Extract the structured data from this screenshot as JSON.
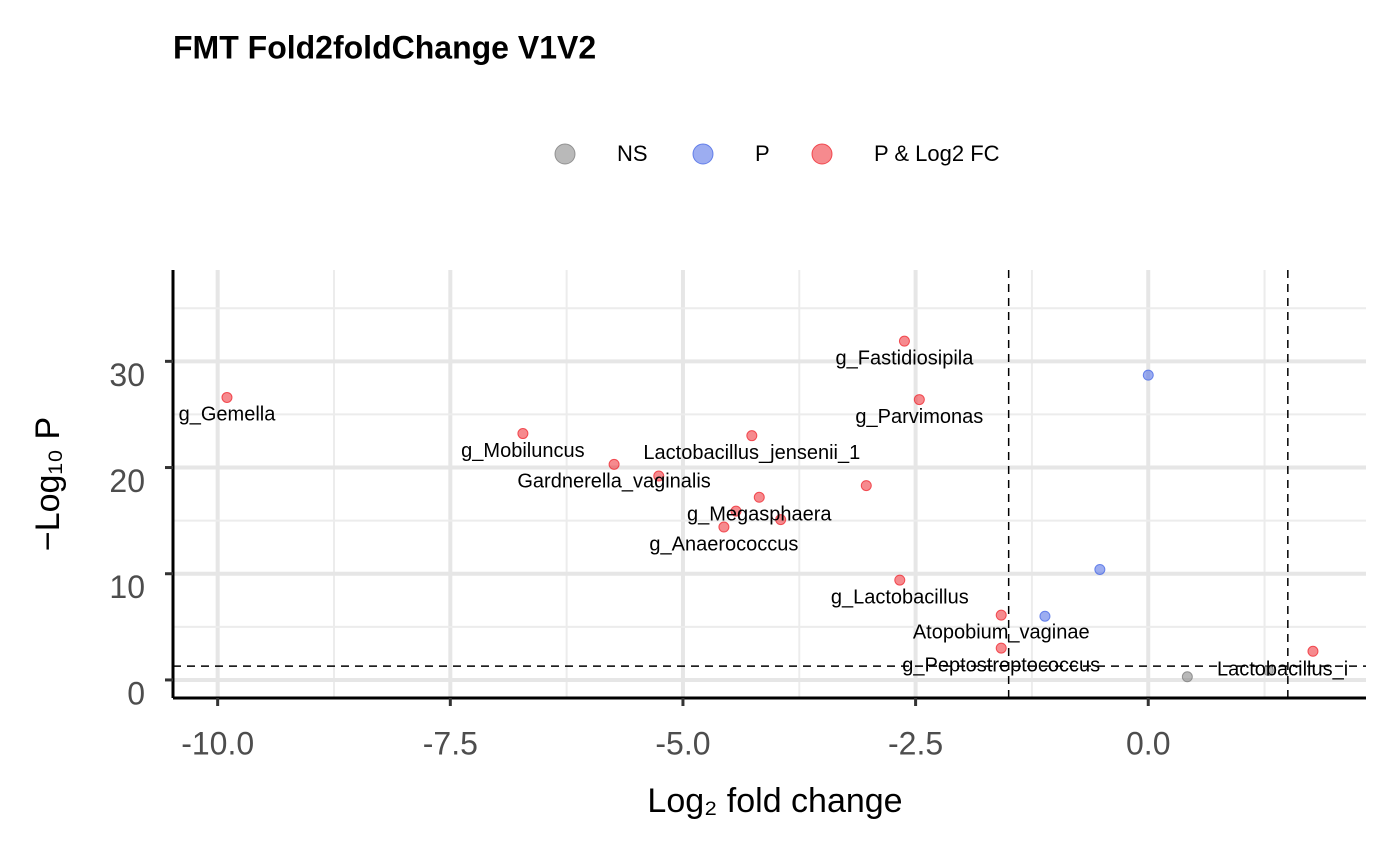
{
  "chart_data": {
    "type": "scatter",
    "title": "FMT Fold2foldChange V1V2",
    "x_label": "Log₂ fold change",
    "y_label": "−Log₁₀ P",
    "xlim": [
      -10.48,
      2.34
    ],
    "ylim": [
      -1.7,
      38.6
    ],
    "xticks": [
      {
        "value": -10,
        "label": "-10.0"
      },
      -7.5,
      {
        "value": -5,
        "label": "-5.0"
      },
      -2.5,
      {
        "value": 0,
        "label": "0.0"
      }
    ],
    "yticks": [
      0,
      10,
      20,
      30
    ],
    "grid": true,
    "legend": "top",
    "thresholds": {
      "x": [
        -1.5,
        1.5
      ],
      "y": 1.3
    },
    "series": [
      {
        "name": "NS",
        "color": "#7f7f7f",
        "x": [
          0.42,
          1.29
        ],
        "values": [
          0.3,
          0.9
        ]
      },
      {
        "name": "P",
        "color": "#4a6ae6",
        "x": [
          0.0,
          -0.52,
          -1.11
        ],
        "values": [
          28.7,
          10.4,
          6.0
        ]
      },
      {
        "name": "P & Log2 FC",
        "color": "#ef2a32",
        "x": [
          -9.9,
          -6.72,
          -4.26,
          -5.74,
          -5.26,
          -3.03,
          -4.18,
          -4.43,
          -3.95,
          -4.56,
          -2.62,
          -2.46,
          -2.67,
          -1.58,
          -1.58,
          1.77
        ],
        "values": [
          26.6,
          23.2,
          23.0,
          20.3,
          19.2,
          18.3,
          17.2,
          15.9,
          15.1,
          14.4,
          31.9,
          26.4,
          9.4,
          6.1,
          3.0,
          2.7
        ],
        "labels": [
          "g_Gemella",
          "g_Mobiluncus",
          "Lactobacillus_jensenii_1",
          "Gardnerella_vaginalis",
          null,
          null,
          "g_Megasphaera",
          null,
          null,
          "g_Anaerococcus",
          "g_Fastidiosipila",
          "g_Parvimonas",
          "g_Lactobacillus",
          "Atopobium_vaginae",
          "g_Peptostreptococcus",
          "Lactobacillus_i"
        ]
      }
    ]
  }
}
